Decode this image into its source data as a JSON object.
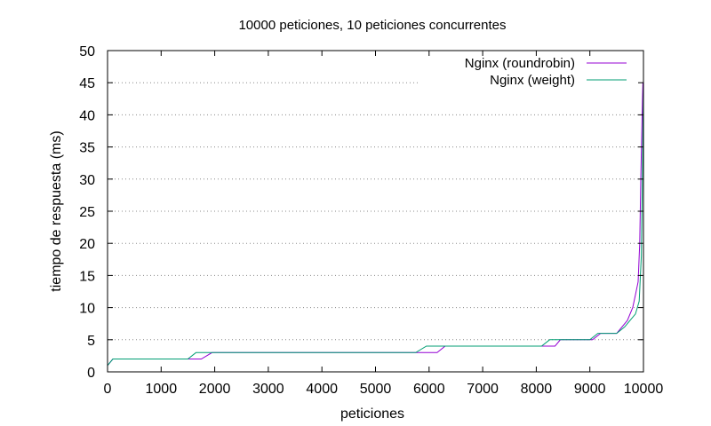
{
  "chart_data": {
    "type": "line",
    "title": "10000 peticiones, 10 peticiones concurrentes",
    "xlabel": "peticiones",
    "ylabel": "tiempo de respuesta (ms)",
    "xlim": [
      0,
      10000
    ],
    "ylim": [
      0,
      50
    ],
    "xticks": [
      0,
      1000,
      2000,
      3000,
      4000,
      5000,
      6000,
      7000,
      8000,
      9000,
      10000
    ],
    "yticks": [
      0,
      5,
      10,
      15,
      20,
      25,
      30,
      35,
      40,
      45,
      50
    ],
    "grid": "horizontal dotted",
    "legend_position": "top-right",
    "series": [
      {
        "name": "Nginx (roundrobin)",
        "color": "#9400d3",
        "x": [
          0,
          100,
          1550,
          1750,
          1950,
          5800,
          6150,
          6300,
          8150,
          8350,
          8450,
          9050,
          9200,
          9300,
          9500,
          9600,
          9700,
          9800,
          9850,
          9900,
          9930,
          9950,
          9970,
          9980,
          9990,
          10000
        ],
        "y": [
          1,
          2,
          2,
          2,
          3,
          3,
          3,
          4,
          4,
          4,
          5,
          5,
          6,
          6,
          6,
          7,
          8,
          10,
          12,
          14,
          20,
          30,
          38,
          42,
          45,
          45
        ]
      },
      {
        "name": "Nginx (weight)",
        "color": "#009e73",
        "x": [
          0,
          100,
          1500,
          1650,
          2000,
          5750,
          5950,
          6300,
          8100,
          8250,
          8500,
          9000,
          9150,
          9300,
          9500,
          9650,
          9750,
          9850,
          9920,
          9960,
          9980,
          9990,
          10000
        ],
        "y": [
          1,
          2,
          2,
          3,
          3,
          3,
          4,
          4,
          4,
          5,
          5,
          5,
          6,
          6,
          6,
          7,
          8,
          9,
          11,
          18,
          30,
          38,
          45
        ]
      }
    ]
  }
}
